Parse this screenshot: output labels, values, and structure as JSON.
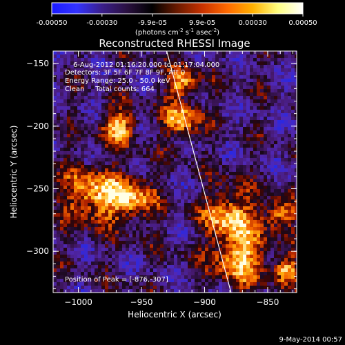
{
  "colorbar": {
    "ticks": [
      "-0.00050",
      "-0.00030",
      "-9.9e-05",
      "9.9e-05",
      "0.00030",
      "0.00050"
    ],
    "tick_values": [
      -0.0005,
      -0.0003,
      -9.9e-05,
      9.9e-05,
      0.0003,
      0.0005
    ],
    "range": [
      -0.0005,
      0.0005
    ],
    "unit_prefix": "(photons cm",
    "unit_exp1": "-2",
    "unit_mid": " s",
    "unit_exp2": "-1",
    "unit_mid2": " asec",
    "unit_exp3": "-2",
    "unit_suffix": ")",
    "colors": [
      "#1a1aff",
      "#3333ff",
      "#3a1e8a",
      "#2a1040",
      "#000000",
      "#6a1a00",
      "#c83200",
      "#ff6a00",
      "#ffb000",
      "#ffff80",
      "#ffffff"
    ]
  },
  "chart_data": {
    "type": "heatmap",
    "title": "Reconstructed RHESSI Image",
    "xlabel": "Heliocentric X (arcsec)",
    "ylabel": "Heliocentric Y (arcsec)",
    "xlim": [
      -1020,
      -827
    ],
    "ylim": [
      -333,
      -140
    ],
    "xticks": [
      -1000,
      -950,
      -900,
      -850
    ],
    "yticks": [
      -150,
      -200,
      -250,
      -300
    ],
    "xtick_labels": [
      "−1000",
      "−950",
      "−900",
      "−850"
    ],
    "ytick_labels": [
      "−150",
      "−200",
      "−250",
      "−300"
    ],
    "limb_line": {
      "x": [
        -930,
        -879
      ],
      "y": [
        -140,
        -333
      ]
    },
    "annotations": [
      "6-Aug-2012 01:16:20.000 to 01:17:04.000",
      "Detectors: 3F 5F 6F 7F 8F 9F, Att 0",
      "Energy Range: 25.0 - 50.0 keV",
      "Clean     Total counts: 664"
    ],
    "peak_label": "Position of Peak = [-876,-307]",
    "peak": [
      -876,
      -307
    ],
    "bright_regions": [
      {
        "x": -990,
        "y": -255,
        "r": 22
      },
      {
        "x": -958,
        "y": -258,
        "r": 18
      },
      {
        "x": -968,
        "y": -200,
        "r": 14
      },
      {
        "x": -918,
        "y": -195,
        "r": 14
      },
      {
        "x": -918,
        "y": -165,
        "r": 12
      },
      {
        "x": -880,
        "y": -270,
        "r": 20
      },
      {
        "x": -872,
        "y": -305,
        "r": 22
      },
      {
        "x": -840,
        "y": -270,
        "r": 12
      },
      {
        "x": -835,
        "y": -315,
        "r": 10
      }
    ]
  },
  "footer": {
    "date": "9-May-2014 00:57"
  }
}
